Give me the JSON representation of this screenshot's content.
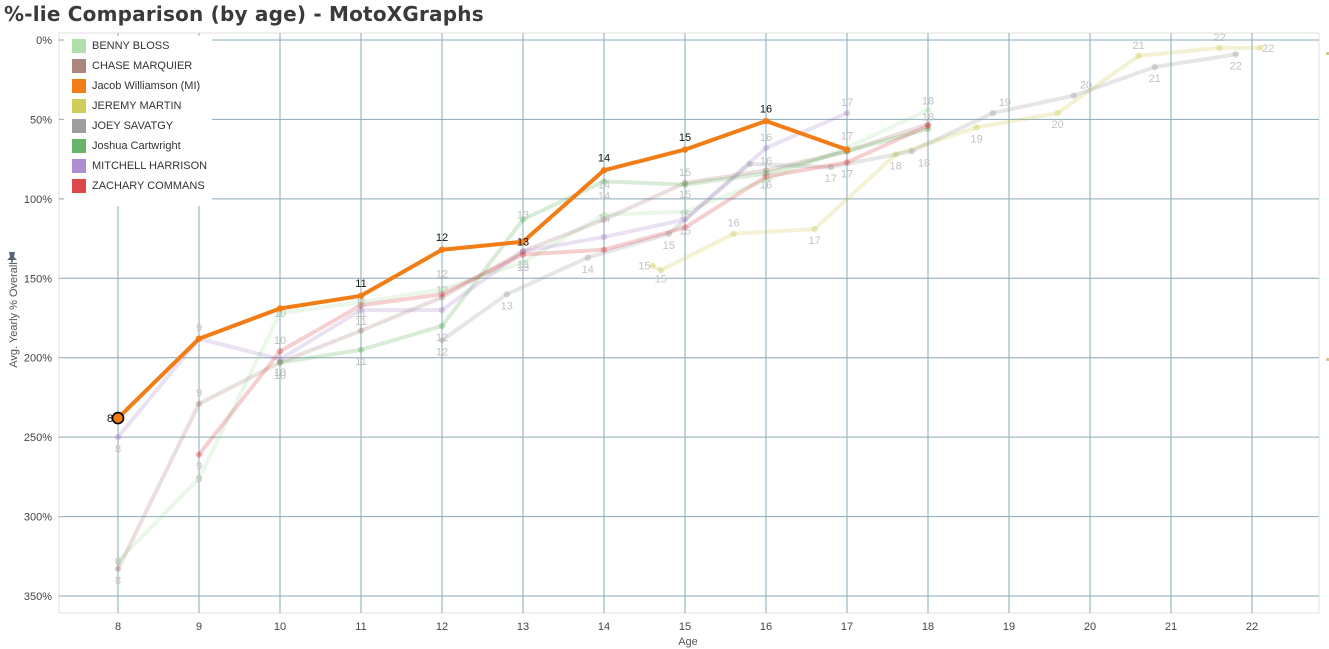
{
  "page": {
    "title": "%-lie Comparison (by age) - MotoXGraphs"
  },
  "colors": {
    "grid": "#8aa9b8",
    "axis_text": "#444444"
  },
  "chart_data": {
    "type": "line",
    "xlabel": "Age",
    "ylabel": "Avg. Yearly % Overall",
    "xlim": [
      7.3,
      22.85
    ],
    "ylim": [
      0,
      360
    ],
    "y_reversed": true,
    "x_ticks": [
      8,
      9,
      10,
      11,
      12,
      13,
      14,
      15,
      16,
      17,
      18,
      19,
      20,
      21,
      22
    ],
    "y_ticks": [
      0,
      50,
      100,
      150,
      200,
      250,
      300,
      350
    ],
    "y_tick_labels": [
      "0%",
      "50%",
      "100%",
      "150%",
      "200%",
      "250%",
      "300%",
      "350%"
    ],
    "grid": true,
    "legend_position": "top-left",
    "highlighted_series": "Jacob Williamson (MI)",
    "series": [
      {
        "name": "BENNY BLOSS",
        "color": "#a1d99b",
        "points": [
          [
            8,
            328
          ],
          [
            9,
            276
          ],
          [
            10,
            172
          ],
          [
            11,
            165
          ],
          [
            12,
            157
          ],
          [
            13,
            140
          ],
          [
            14,
            110
          ],
          [
            15,
            108
          ],
          [
            16,
            88
          ],
          [
            17,
            68
          ],
          [
            18,
            44
          ]
        ]
      },
      {
        "name": "CHASE MARQUIER",
        "color": "#9c7167",
        "points": [
          [
            8,
            333
          ],
          [
            9,
            229
          ],
          [
            10,
            203
          ],
          [
            11,
            183
          ],
          [
            12,
            162
          ],
          [
            13,
            133
          ],
          [
            14,
            113
          ],
          [
            15,
            90
          ],
          [
            16,
            82
          ],
          [
            17,
            70
          ],
          [
            18,
            53
          ]
        ]
      },
      {
        "name": "Jacob Williamson (MI)",
        "color": "#f07d16",
        "points": [
          [
            8,
            238
          ],
          [
            9,
            188
          ],
          [
            10,
            169
          ],
          [
            11,
            161
          ],
          [
            12,
            132
          ],
          [
            13,
            127
          ],
          [
            14,
            82
          ],
          [
            15,
            69
          ],
          [
            16,
            51
          ],
          [
            17,
            69
          ]
        ]
      },
      {
        "name": "JEREMY MARTIN",
        "color": "#c8c33c",
        "points": [
          [
            14.6,
            142
          ],
          [
            14.7,
            145
          ],
          [
            15.6,
            122
          ],
          [
            16.6,
            119
          ],
          [
            17.6,
            72
          ],
          [
            18.6,
            55
          ],
          [
            19.6,
            46
          ],
          [
            20.6,
            10
          ],
          [
            21.6,
            5
          ],
          [
            22.1,
            5
          ]
        ]
      },
      {
        "name": "JOEY SAVATGY",
        "color": "#8d8d8d",
        "points": [
          [
            12,
            189
          ],
          [
            12.8,
            160
          ],
          [
            13.8,
            137
          ],
          [
            14.8,
            122
          ],
          [
            15.8,
            78
          ],
          [
            16.8,
            80
          ],
          [
            17.8,
            70
          ],
          [
            18.8,
            46
          ],
          [
            19.8,
            35
          ],
          [
            20.8,
            17
          ],
          [
            21.8,
            9
          ]
        ]
      },
      {
        "name": "Joshua Cartwright",
        "color": "#4da74d",
        "points": [
          [
            10,
            203
          ],
          [
            11,
            195
          ],
          [
            12,
            180
          ],
          [
            13,
            113
          ],
          [
            14,
            89
          ],
          [
            15,
            91
          ],
          [
            16,
            84
          ],
          [
            17,
            70
          ],
          [
            18,
            56
          ]
        ]
      },
      {
        "name": "MITCHELL HARRISON",
        "color": "#a07ac8",
        "points": [
          [
            8,
            250
          ],
          [
            9,
            188
          ],
          [
            10,
            201
          ],
          [
            11,
            170
          ],
          [
            12,
            170
          ],
          [
            13,
            133
          ],
          [
            14,
            124
          ],
          [
            15,
            113
          ],
          [
            16,
            68
          ],
          [
            17,
            46
          ]
        ]
      },
      {
        "name": "ZACHARY COMMANS",
        "color": "#d62728",
        "points": [
          [
            9,
            261
          ],
          [
            10,
            196
          ],
          [
            11,
            167
          ],
          [
            12,
            160
          ],
          [
            13,
            135
          ],
          [
            14,
            132
          ],
          [
            15,
            118
          ],
          [
            16,
            86
          ],
          [
            17,
            77
          ],
          [
            18,
            54
          ]
        ]
      }
    ],
    "point_labels": [
      {
        "series": "BENNY BLOSS",
        "text": "8",
        "x": 8,
        "y": 328
      },
      {
        "series": "BENNY BLOSS",
        "text": "9",
        "x": 9,
        "y": 276
      },
      {
        "series": "BENNY BLOSS",
        "text": "10",
        "x": 10,
        "y": 172
      },
      {
        "series": "BENNY BLOSS",
        "text": "11",
        "x": 11,
        "y": 165
      },
      {
        "series": "BENNY BLOSS",
        "text": "12",
        "x": 12,
        "y": 157
      },
      {
        "series": "BENNY BLOSS",
        "text": "13",
        "x": 13,
        "y": 110
      },
      {
        "series": "BENNY BLOSS",
        "text": "14",
        "x": 14,
        "y": 98
      },
      {
        "series": "BENNY BLOSS",
        "text": "15",
        "x": 15,
        "y": 97
      },
      {
        "series": "BENNY BLOSS",
        "text": "16",
        "x": 16,
        "y": 76
      },
      {
        "series": "BENNY BLOSS",
        "text": "17",
        "x": 17,
        "y": 60
      },
      {
        "series": "BENNY BLOSS",
        "text": "18",
        "x": 18,
        "y": 38
      },
      {
        "series": "CHASE MARQUIER",
        "text": "8",
        "x": 8,
        "y": 340
      },
      {
        "series": "CHASE MARQUIER",
        "text": "9",
        "x": 9,
        "y": 222
      },
      {
        "series": "CHASE MARQUIER",
        "text": "10",
        "x": 10,
        "y": 209
      },
      {
        "series": "CHASE MARQUIER",
        "text": "11",
        "x": 11,
        "y": 172
      },
      {
        "series": "Jacob Williamson (MI)",
        "text": "8",
        "x": 8,
        "y": 238
      },
      {
        "series": "Jacob Williamson (MI)",
        "text": "11",
        "x": 11,
        "y": 153
      },
      {
        "series": "Jacob Williamson (MI)",
        "text": "12",
        "x": 12,
        "y": 124
      },
      {
        "series": "Jacob Williamson (MI)",
        "text": "13",
        "x": 13,
        "y": 127
      },
      {
        "series": "Jacob Williamson (MI)",
        "text": "14",
        "x": 14,
        "y": 74
      },
      {
        "series": "Jacob Williamson (MI)",
        "text": "15",
        "x": 15,
        "y": 61
      },
      {
        "series": "Jacob Williamson (MI)",
        "text": "16",
        "x": 16,
        "y": 43
      },
      {
        "series": "JEREMY MARTIN",
        "text": "15",
        "x": 14.5,
        "y": 142
      },
      {
        "series": "JEREMY MARTIN",
        "text": "15",
        "x": 14.7,
        "y": 150
      },
      {
        "series": "JEREMY MARTIN",
        "text": "16",
        "x": 15.6,
        "y": 115
      },
      {
        "series": "JEREMY MARTIN",
        "text": "17",
        "x": 16.6,
        "y": 126
      },
      {
        "series": "JEREMY MARTIN",
        "text": "18",
        "x": 17.6,
        "y": 79
      },
      {
        "series": "JEREMY MARTIN",
        "text": "19",
        "x": 18.6,
        "y": 62
      },
      {
        "series": "JEREMY MARTIN",
        "text": "20",
        "x": 19.6,
        "y": 53
      },
      {
        "series": "JEREMY MARTIN",
        "text": "21",
        "x": 20.6,
        "y": 3
      },
      {
        "series": "JEREMY MARTIN",
        "text": "22",
        "x": 21.6,
        "y": -2
      },
      {
        "series": "JEREMY MARTIN",
        "text": "22",
        "x": 22.2,
        "y": 5
      },
      {
        "series": "JOEY SAVATGY",
        "text": "12",
        "x": 12,
        "y": 196
      },
      {
        "series": "JOEY SAVATGY",
        "text": "13",
        "x": 12.8,
        "y": 167
      },
      {
        "series": "JOEY SAVATGY",
        "text": "14",
        "x": 13.8,
        "y": 144
      },
      {
        "series": "JOEY SAVATGY",
        "text": "15",
        "x": 14.8,
        "y": 129
      },
      {
        "series": "JOEY SAVATGY",
        "text": "16",
        "x": 16,
        "y": 86
      },
      {
        "series": "JOEY SAVATGY",
        "text": "17",
        "x": 16.8,
        "y": 87
      },
      {
        "series": "JOEY SAVATGY",
        "text": "18",
        "x": 17.95,
        "y": 77
      },
      {
        "series": "JOEY SAVATGY",
        "text": "19",
        "x": 18.95,
        "y": 39
      },
      {
        "series": "JOEY SAVATGY",
        "text": "20",
        "x": 19.95,
        "y": 28
      },
      {
        "series": "JOEY SAVATGY",
        "text": "21",
        "x": 20.8,
        "y": 24
      },
      {
        "series": "JOEY SAVATGY",
        "text": "22",
        "x": 21.8,
        "y": 16
      },
      {
        "series": "Joshua Cartwright",
        "text": "10",
        "x": 10,
        "y": 209
      },
      {
        "series": "Joshua Cartwright",
        "text": "11",
        "x": 11,
        "y": 202
      },
      {
        "series": "Joshua Cartwright",
        "text": "12",
        "x": 12,
        "y": 187
      },
      {
        "series": "Joshua Cartwright",
        "text": "13",
        "x": 13,
        "y": 141
      },
      {
        "series": "Joshua Cartwright",
        "text": "14",
        "x": 14,
        "y": 91
      },
      {
        "series": "Joshua Cartwright",
        "text": "15",
        "x": 15,
        "y": 83
      },
      {
        "series": "Joshua Cartwright",
        "text": "16",
        "x": 16,
        "y": 91
      },
      {
        "series": "Joshua Cartwright",
        "text": "17",
        "x": 17,
        "y": 84
      },
      {
        "series": "MITCHELL HARRISON",
        "text": "8",
        "x": 8,
        "y": 257
      },
      {
        "series": "MITCHELL HARRISON",
        "text": "9",
        "x": 9,
        "y": 181
      },
      {
        "series": "MITCHELL HARRISON",
        "text": "10",
        "x": 10,
        "y": 189
      },
      {
        "series": "MITCHELL HARRISON",
        "text": "11",
        "x": 11,
        "y": 177
      },
      {
        "series": "MITCHELL HARRISON",
        "text": "15",
        "x": 15,
        "y": 120
      },
      {
        "series": "MITCHELL HARRISON",
        "text": "16",
        "x": 16,
        "y": 61
      },
      {
        "series": "MITCHELL HARRISON",
        "text": "17",
        "x": 17,
        "y": 39
      },
      {
        "series": "ZACHARY COMMANS",
        "text": "9",
        "x": 9,
        "y": 268
      },
      {
        "series": "ZACHARY COMMANS",
        "text": "10",
        "x": 10,
        "y": 211
      },
      {
        "series": "ZACHARY COMMANS",
        "text": "12",
        "x": 12,
        "y": 147
      },
      {
        "series": "ZACHARY COMMANS",
        "text": "13",
        "x": 13,
        "y": 143
      },
      {
        "series": "ZACHARY COMMANS",
        "text": "14",
        "x": 14,
        "y": 112
      },
      {
        "series": "ZACHARY COMMANS",
        "text": "15",
        "x": 15,
        "y": 110
      },
      {
        "series": "ZACHARY COMMANS",
        "text": "18",
        "x": 18,
        "y": 48
      }
    ]
  }
}
